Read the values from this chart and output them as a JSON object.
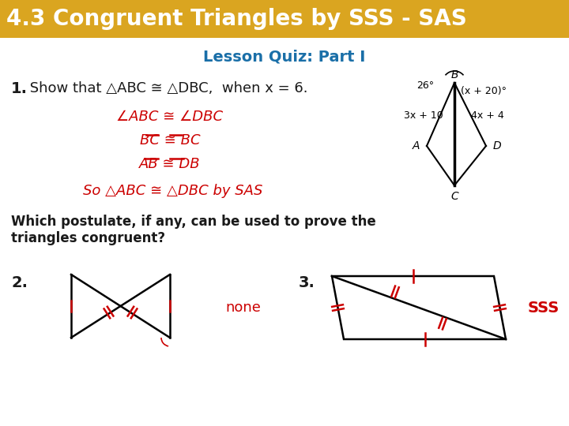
{
  "title": "4.3 Congruent Triangles by SSS - SAS",
  "title_bg": "#DAA520",
  "title_color": "white",
  "subtitle": "Lesson Quiz: Part I",
  "subtitle_color": "#1a6fa8",
  "bg_color": "white",
  "body_color": "#1a1a1a",
  "red_color": "#cc0000",
  "line1_bold": "1.",
  "line1_text": " Show that △ABC ≅ △DBC,  when x = 6.",
  "step1": "∠ABC ≅ ∠DBC",
  "step2": "BC ≅ BC",
  "step3": "AB ≅ DB",
  "conclusion": "So △ABC ≅ △DBC by SAS",
  "question_text": "Which postulate, if any, can be used to prove the\ntriangles congruent?",
  "q2_label": "2.",
  "q2_answer": "none",
  "q3_label": "3.",
  "q3_answer": "SSS"
}
